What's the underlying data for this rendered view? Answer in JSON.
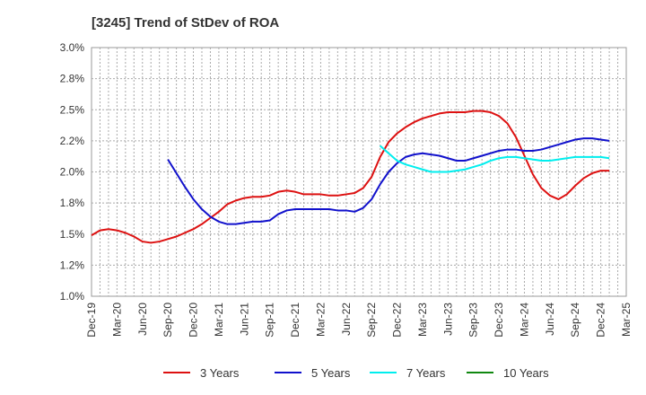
{
  "chart_data": {
    "type": "line",
    "title": "[3245]  Trend of StDev of ROA",
    "xlabel": "",
    "ylabel": "",
    "x_ticks": [
      "Dec-19",
      "Mar-20",
      "Jun-20",
      "Sep-20",
      "Dec-20",
      "Mar-21",
      "Jun-21",
      "Sep-21",
      "Dec-21",
      "Mar-22",
      "Jun-22",
      "Sep-22",
      "Dec-22",
      "Mar-23",
      "Jun-23",
      "Sep-23",
      "Dec-23",
      "Mar-24",
      "Jun-24",
      "Sep-24",
      "Dec-24",
      "Mar-25"
    ],
    "y_ticks": [
      "1.0%",
      "1.2%",
      "1.5%",
      "1.8%",
      "2.0%",
      "2.2%",
      "2.5%",
      "2.8%",
      "3.0%"
    ],
    "ylim": [
      1.0,
      3.0
    ],
    "grid": true,
    "legend_position": "bottom",
    "series": [
      {
        "name": "3 Years",
        "color": "#dd1111",
        "points": [
          [
            0,
            1.49
          ],
          [
            1,
            1.53
          ],
          [
            2,
            1.54
          ],
          [
            3,
            1.53
          ],
          [
            4,
            1.51
          ],
          [
            5,
            1.48
          ],
          [
            6,
            1.44
          ],
          [
            7,
            1.43
          ],
          [
            8,
            1.44
          ],
          [
            9,
            1.46
          ],
          [
            10,
            1.48
          ],
          [
            11,
            1.51
          ],
          [
            12,
            1.54
          ],
          [
            13,
            1.58
          ],
          [
            14,
            1.63
          ],
          [
            15,
            1.68
          ],
          [
            16,
            1.74
          ],
          [
            17,
            1.77
          ],
          [
            18,
            1.79
          ],
          [
            19,
            1.8
          ],
          [
            20,
            1.8
          ],
          [
            21,
            1.81
          ],
          [
            22,
            1.84
          ],
          [
            23,
            1.85
          ],
          [
            24,
            1.84
          ],
          [
            25,
            1.82
          ],
          [
            26,
            1.82
          ],
          [
            27,
            1.82
          ],
          [
            28,
            1.81
          ],
          [
            29,
            1.81
          ],
          [
            30,
            1.82
          ],
          [
            31,
            1.83
          ],
          [
            32,
            1.87
          ],
          [
            33,
            1.96
          ],
          [
            34,
            2.12
          ],
          [
            35,
            2.24
          ],
          [
            36,
            2.31
          ],
          [
            37,
            2.36
          ],
          [
            38,
            2.4
          ],
          [
            39,
            2.43
          ],
          [
            40,
            2.45
          ],
          [
            41,
            2.47
          ],
          [
            42,
            2.48
          ],
          [
            43,
            2.48
          ],
          [
            44,
            2.48
          ],
          [
            45,
            2.49
          ],
          [
            46,
            2.49
          ],
          [
            47,
            2.48
          ],
          [
            48,
            2.45
          ],
          [
            49,
            2.39
          ],
          [
            50,
            2.28
          ],
          [
            51,
            2.13
          ],
          [
            52,
            1.98
          ],
          [
            53,
            1.87
          ],
          [
            54,
            1.81
          ],
          [
            55,
            1.78
          ],
          [
            56,
            1.82
          ],
          [
            57,
            1.89
          ],
          [
            58,
            1.95
          ],
          [
            59,
            1.99
          ],
          [
            60,
            2.01
          ],
          [
            61,
            2.01
          ]
        ]
      },
      {
        "name": "5 Years",
        "color": "#1111cc",
        "points": [
          [
            9,
            2.1
          ],
          [
            10,
            1.99
          ],
          [
            11,
            1.88
          ],
          [
            12,
            1.78
          ],
          [
            13,
            1.7
          ],
          [
            14,
            1.64
          ],
          [
            15,
            1.6
          ],
          [
            16,
            1.58
          ],
          [
            17,
            1.58
          ],
          [
            18,
            1.59
          ],
          [
            19,
            1.6
          ],
          [
            20,
            1.6
          ],
          [
            21,
            1.61
          ],
          [
            22,
            1.66
          ],
          [
            23,
            1.69
          ],
          [
            24,
            1.7
          ],
          [
            25,
            1.7
          ],
          [
            26,
            1.7
          ],
          [
            27,
            1.7
          ],
          [
            28,
            1.7
          ],
          [
            29,
            1.69
          ],
          [
            30,
            1.69
          ],
          [
            31,
            1.68
          ],
          [
            32,
            1.71
          ],
          [
            33,
            1.78
          ],
          [
            34,
            1.9
          ],
          [
            35,
            2.0
          ],
          [
            36,
            2.07
          ],
          [
            37,
            2.12
          ],
          [
            38,
            2.14
          ],
          [
            39,
            2.15
          ],
          [
            40,
            2.14
          ],
          [
            41,
            2.13
          ],
          [
            42,
            2.11
          ],
          [
            43,
            2.09
          ],
          [
            44,
            2.09
          ],
          [
            45,
            2.11
          ],
          [
            46,
            2.13
          ],
          [
            47,
            2.15
          ],
          [
            48,
            2.17
          ],
          [
            49,
            2.18
          ],
          [
            50,
            2.18
          ],
          [
            51,
            2.17
          ],
          [
            52,
            2.17
          ],
          [
            53,
            2.18
          ],
          [
            54,
            2.2
          ],
          [
            55,
            2.22
          ],
          [
            56,
            2.24
          ],
          [
            57,
            2.26
          ],
          [
            58,
            2.27
          ],
          [
            59,
            2.27
          ],
          [
            60,
            2.26
          ],
          [
            61,
            2.25
          ]
        ]
      },
      {
        "name": "7 Years",
        "color": "#00eeee",
        "points": [
          [
            34,
            2.21
          ],
          [
            35,
            2.15
          ],
          [
            36,
            2.09
          ],
          [
            37,
            2.06
          ],
          [
            38,
            2.04
          ],
          [
            39,
            2.02
          ],
          [
            40,
            2.0
          ],
          [
            41,
            2.0
          ],
          [
            42,
            2.0
          ],
          [
            43,
            2.01
          ],
          [
            44,
            2.02
          ],
          [
            45,
            2.04
          ],
          [
            46,
            2.06
          ],
          [
            47,
            2.09
          ],
          [
            48,
            2.11
          ],
          [
            49,
            2.12
          ],
          [
            50,
            2.12
          ],
          [
            51,
            2.11
          ],
          [
            52,
            2.1
          ],
          [
            53,
            2.09
          ],
          [
            54,
            2.09
          ],
          [
            55,
            2.1
          ],
          [
            56,
            2.11
          ],
          [
            57,
            2.12
          ],
          [
            58,
            2.12
          ],
          [
            59,
            2.12
          ],
          [
            60,
            2.12
          ],
          [
            61,
            2.11
          ]
        ]
      },
      {
        "name": "10 Years",
        "color": "#118811",
        "points": []
      }
    ]
  }
}
